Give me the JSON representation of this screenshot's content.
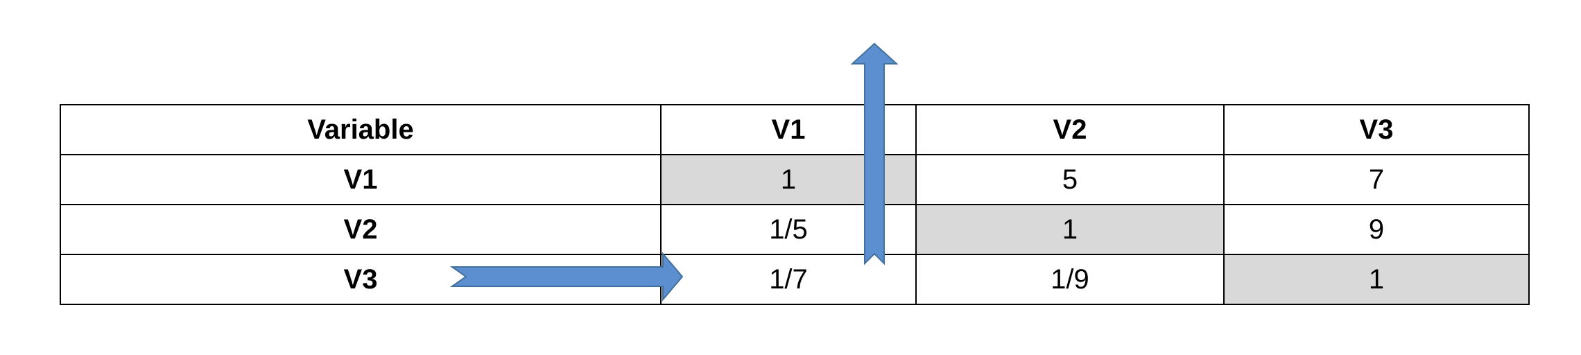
{
  "table": {
    "header": [
      "Variable",
      "V1",
      "V2",
      "V3"
    ],
    "rows": [
      {
        "label": "V1",
        "cells": [
          "1",
          "5",
          "7"
        ]
      },
      {
        "label": "V2",
        "cells": [
          "1/5",
          "1",
          "9"
        ]
      },
      {
        "label": "V3",
        "cells": [
          "1/7",
          "1/9",
          "1"
        ]
      }
    ]
  },
  "colors": {
    "diagonal_fill": "#d9d9d9",
    "arrow_fill": "#5b8fcf",
    "arrow_stroke": "#41719c",
    "border": "#000000"
  },
  "icons": [
    "arrow-right-icon",
    "arrow-up-icon"
  ]
}
